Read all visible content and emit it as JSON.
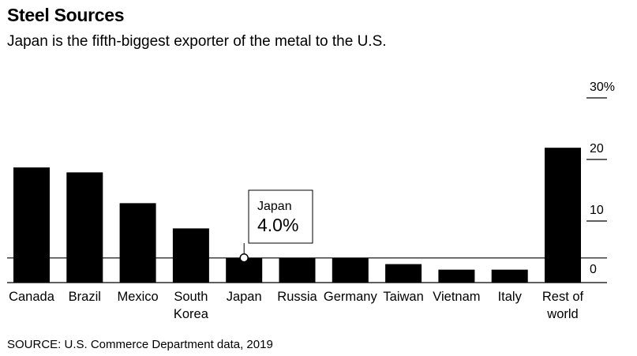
{
  "title": "Steel Sources",
  "subtitle": "Japan is the fifth-biggest exporter of the metal to the U.S.",
  "source": "SOURCE: U.S. Commerce Department data, 2019",
  "chart_data": {
    "type": "bar",
    "categories": [
      [
        "Canada"
      ],
      [
        "Brazil"
      ],
      [
        "Mexico"
      ],
      [
        "South",
        "Korea"
      ],
      [
        "Japan"
      ],
      [
        "Russia"
      ],
      [
        "Germany"
      ],
      [
        "Taiwan"
      ],
      [
        "Vietnam"
      ],
      [
        "Italy"
      ],
      [
        "Rest of",
        "world"
      ]
    ],
    "values": [
      18.7,
      17.9,
      12.9,
      8.8,
      4.0,
      4.0,
      4.0,
      3.0,
      2.1,
      2.1,
      21.9
    ],
    "ylim": [
      0,
      30
    ],
    "yticks": [
      0,
      10,
      20,
      30
    ],
    "ytick_labels": [
      "0",
      "10",
      "20",
      "30%"
    ],
    "reference_line": 4.0,
    "annotation": {
      "category": "Japan",
      "label": "Japan",
      "value_label": "4.0%"
    },
    "colors": {
      "bar": "#000000",
      "axis": "#000000"
    },
    "title": "Steel Sources",
    "xlabel": "",
    "ylabel": ""
  }
}
